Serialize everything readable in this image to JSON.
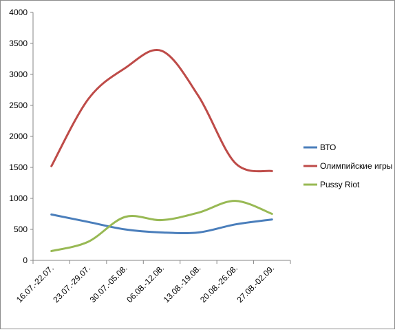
{
  "chart_data": {
    "type": "line",
    "title": "",
    "xlabel": "",
    "ylabel": "",
    "ylim": [
      0,
      4000
    ],
    "yticks": [
      0,
      500,
      1000,
      1500,
      2000,
      2500,
      3000,
      3500,
      4000
    ],
    "grid": false,
    "legend_position": "right",
    "smooth": true,
    "categories": [
      "16.07.-22.07.",
      "23.07.-29.07.",
      "30.07.-05.08.",
      "06.08.-12.08.",
      "13.08.-19.08.",
      "20.08.-26.08.",
      "27.08.-02.09."
    ],
    "series": [
      {
        "name": "ВТО",
        "color": "#4a7ebb",
        "values": [
          740,
          620,
          500,
          450,
          450,
          580,
          660
        ]
      },
      {
        "name": "Олимпийские игры",
        "color": "#be4b48",
        "values": [
          1520,
          2600,
          3100,
          3380,
          2650,
          1570,
          1440
        ]
      },
      {
        "name": "Pussy Riot",
        "color": "#98b954",
        "values": [
          150,
          300,
          700,
          650,
          770,
          960,
          750
        ]
      }
    ]
  }
}
